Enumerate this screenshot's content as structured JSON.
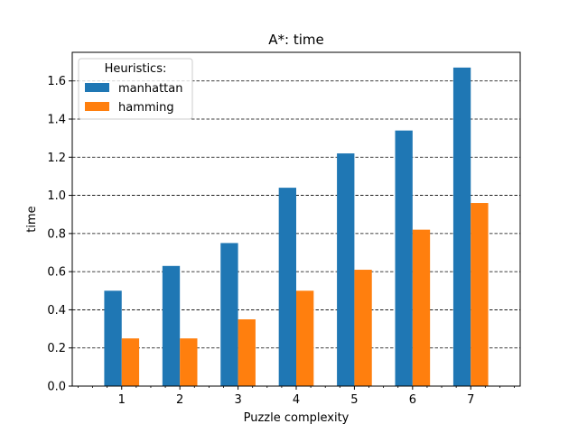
{
  "chart_data": {
    "type": "bar",
    "title": "A*: time",
    "xlabel": "Puzzle complexity",
    "ylabel": "time",
    "categories": [
      "1",
      "2",
      "3",
      "4",
      "5",
      "6",
      "7"
    ],
    "series": [
      {
        "name": "manhattan",
        "color": "#1f77b4",
        "values": [
          0.5,
          0.63,
          0.75,
          1.04,
          1.22,
          1.34,
          1.67
        ]
      },
      {
        "name": "hamming",
        "color": "#ff7f0e",
        "values": [
          0.25,
          0.25,
          0.35,
          0.5,
          0.61,
          0.82,
          0.96
        ]
      }
    ],
    "ylim": [
      0,
      1.75
    ],
    "yticks": [
      "0.0",
      "0.2",
      "0.4",
      "0.6",
      "0.8",
      "1.0",
      "1.2",
      "1.4",
      "1.6"
    ],
    "grid": "y-dashed",
    "legend": {
      "title": "Heuristics:",
      "placement": "top-left"
    }
  }
}
